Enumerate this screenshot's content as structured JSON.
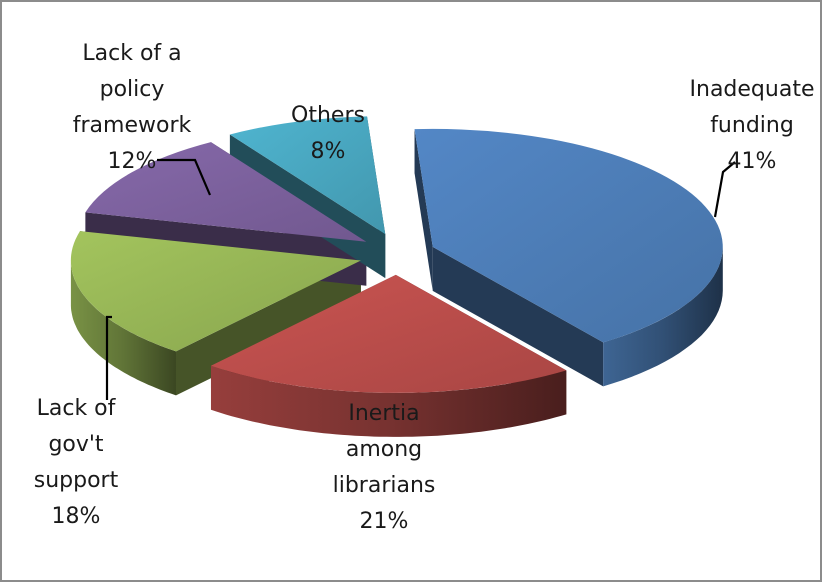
{
  "chart_data": {
    "type": "pie",
    "title": "",
    "slices": [
      {
        "name": "Inadequate funding",
        "label_lines": [
          "Inadequate",
          "funding",
          "41%"
        ],
        "value": 41,
        "color": "#4f81bd"
      },
      {
        "name": "Inertia among librarians",
        "label_lines": [
          "Inertia",
          "among",
          "librarians",
          "21%"
        ],
        "value": 21,
        "color": "#c0504d"
      },
      {
        "name": "Lack of gov't support",
        "label_lines": [
          "Lack of",
          "gov't",
          "support",
          "18%"
        ],
        "value": 18,
        "color": "#9bbb59"
      },
      {
        "name": "Lack of a policy framework",
        "label_lines": [
          "Lack of a",
          "policy",
          "framework",
          "12%"
        ],
        "value": 12,
        "color": "#8064a2"
      },
      {
        "name": "Others",
        "label_lines": [
          "Others",
          "8%"
        ],
        "value": 8,
        "color": "#4bacc6"
      }
    ],
    "exploded": true,
    "three_d": true,
    "legend": "none"
  }
}
